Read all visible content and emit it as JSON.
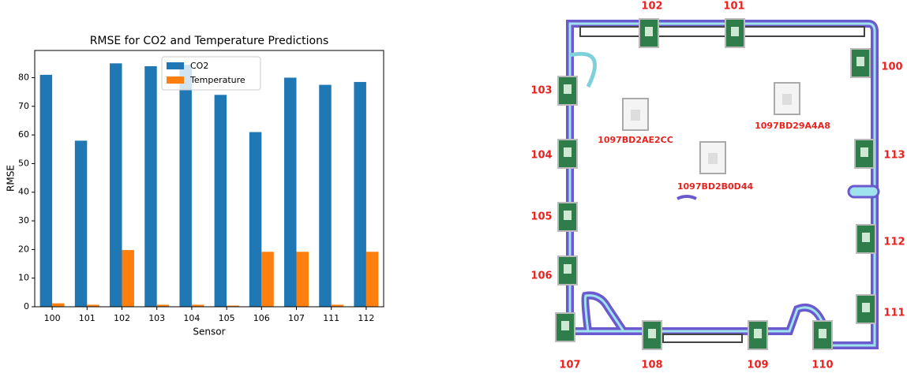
{
  "chart_data": {
    "type": "bar",
    "title": "RMSE for CO2 and Temperature Predictions",
    "x_label": "Sensor",
    "y_label": "RMSE",
    "categories": [
      "100",
      "101",
      "102",
      "103",
      "104",
      "105",
      "106",
      "107",
      "111",
      "112"
    ],
    "series": [
      {
        "name": "CO2",
        "color": "#1f77b4",
        "values": [
          81,
          58,
          85,
          84,
          84.5,
          74,
          61,
          80,
          77.5,
          78.5
        ]
      },
      {
        "name": "Temperature",
        "color": "#ff7f0e",
        "values": [
          1.2,
          0.7,
          19.8,
          0.7,
          0.7,
          0.4,
          19.2,
          19.2,
          0.7,
          19.2
        ]
      }
    ],
    "ylim": [
      0,
      89.5
    ],
    "yticks": [
      0,
      10,
      20,
      30,
      40,
      50,
      60,
      70,
      80
    ],
    "legend": "upper center"
  },
  "floor_plan": {
    "sensors": [
      "100",
      "101",
      "102",
      "103",
      "104",
      "105",
      "106",
      "107",
      "108",
      "109",
      "110",
      "111",
      "112",
      "113"
    ],
    "gateways": [
      "1097BD2AE2CC",
      "1097BD29A4A8",
      "1097BD2B0D44"
    ]
  }
}
